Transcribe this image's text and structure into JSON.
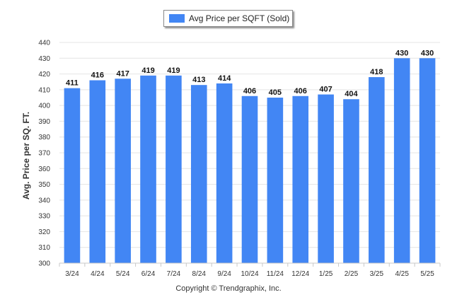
{
  "chart_data": {
    "type": "bar",
    "categories": [
      "3/24",
      "4/24",
      "5/24",
      "6/24",
      "7/24",
      "8/24",
      "9/24",
      "10/24",
      "11/24",
      "12/24",
      "1/25",
      "2/25",
      "3/25",
      "4/25",
      "5/25"
    ],
    "series": [
      {
        "name": "Avg Price per SQFT (Sold)",
        "values": [
          411,
          416,
          417,
          419,
          419,
          413,
          414,
          406,
          405,
          406,
          407,
          404,
          418,
          430,
          430
        ],
        "color": "#4286f4"
      }
    ],
    "title": "",
    "xlabel": "",
    "ylabel": "Avg. Price per SQ. FT.",
    "ylim": [
      300,
      440
    ],
    "yticks": [
      300,
      310,
      320,
      330,
      340,
      350,
      360,
      370,
      380,
      390,
      400,
      410,
      420,
      430,
      440
    ],
    "grid": true,
    "legend": "top-center",
    "data_labels": true
  },
  "footer": {
    "copyright": "Copyright © Trendgraphix, Inc."
  }
}
